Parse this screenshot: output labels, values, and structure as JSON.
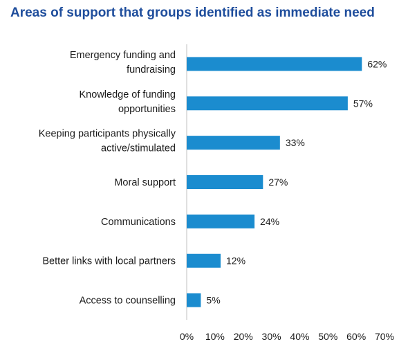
{
  "chart_data": {
    "type": "bar",
    "orientation": "horizontal",
    "title": "Areas of support that groups identified as immediate need",
    "categories": [
      [
        "Emergency funding and",
        "fundraising"
      ],
      [
        "Knowledge of funding",
        "opportunities"
      ],
      [
        "Keeping participants physically",
        "active/stimulated"
      ],
      [
        "Moral support"
      ],
      [
        "Communications"
      ],
      [
        "Better links with local partners"
      ],
      [
        "Access to counselling"
      ]
    ],
    "values": [
      62,
      57,
      33,
      27,
      24,
      12,
      5
    ],
    "value_labels": [
      "62%",
      "57%",
      "33%",
      "27%",
      "24%",
      "12%",
      "5%"
    ],
    "xlim": [
      0,
      70
    ],
    "xticks": [
      "0%",
      "10%",
      "20%",
      "30%",
      "40%",
      "50%",
      "60%",
      "70%"
    ],
    "grid": false,
    "bar_color": "#1b8ccf",
    "title_color": "#1e4d9c"
  }
}
